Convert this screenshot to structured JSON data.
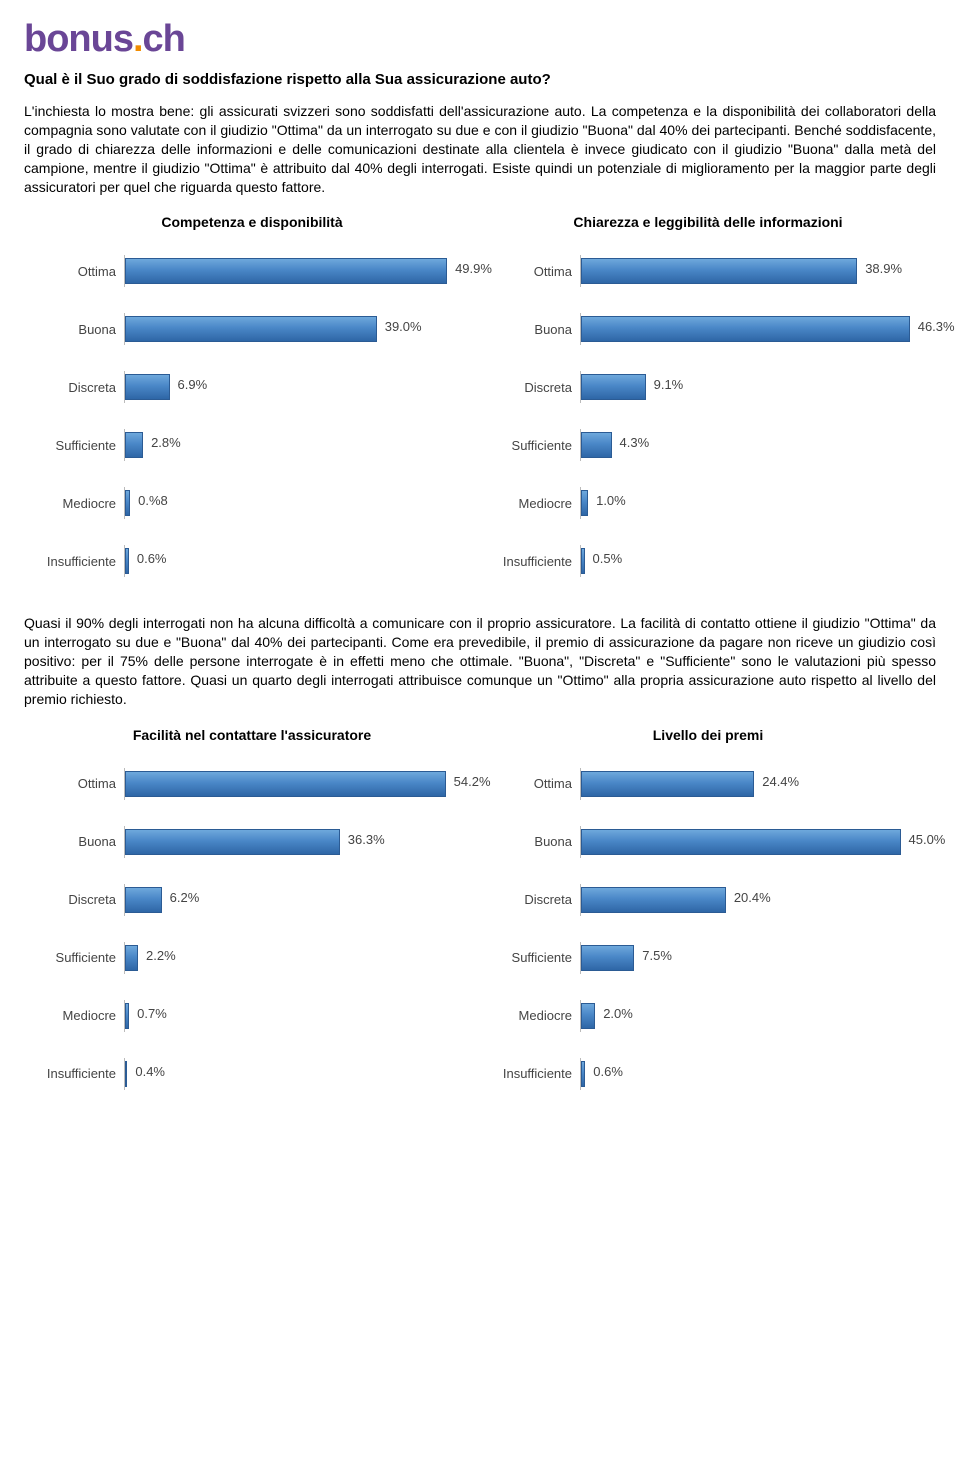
{
  "logo": {
    "text1": "bonus",
    "dot": ".",
    "text2": "ch"
  },
  "question": "Qual è il Suo grado di soddisfazione rispetto alla Sua assicurazione auto?",
  "para1": "L'inchiesta lo mostra bene: gli assicurati svizzeri sono soddisfatti dell'assicurazione auto. La competenza e la disponibilità dei collaboratori della compagnia sono valutate con il giudizio \"Ottima\" da un interrogato su due e con il giudizio \"Buona\" dal 40% dei partecipanti. Benché soddisfacente, il grado di chiarezza delle informazioni e delle comunicazioni destinate alla clientela è invece giudicato con il giudizio \"Buona\" dalla metà del campione, mentre il giudizio \"Ottima\" è attribuito dal 40% degli interrogati. Esiste quindi un potenziale di miglioramento per la maggior parte degli assicuratori per quel che riguarda questo fattore.",
  "para2": "Quasi il 90% degli interrogati non ha alcuna difficoltà a comunicare con il proprio assicuratore. La facilità di contatto ottiene il giudizio \"Ottima\" da un interrogato su due e \"Buona\" dal 40% dei partecipanti. Come era prevedibile, il premio di assicurazione da pagare non riceve un giudizio così positivo: per il 75% delle persone interrogate è in effetti meno che ottimale. \"Buona\", \"Discreta\" e \"Sufficiente\" sono le valutazioni più spesso attribuite a questo fattore. Quasi un quarto degli interrogati attribuisce comunque un \"Ottimo\" alla propria assicurazione auto rispetto al livello del premio richiesto.",
  "categories": [
    "Ottima",
    "Buona",
    "Discreta",
    "Sufficiente",
    "Mediocre",
    "Insufficiente"
  ],
  "colors": {
    "bar_top": "#6ea8dc",
    "bar_mid": "#4a87c7",
    "bar_bot": "#2e66a6",
    "bar_border": "#2b5b94",
    "axis": "#bbbbbb",
    "text": "#444444"
  },
  "charts": [
    {
      "id": "chart-competenza",
      "title": "Competenza e disponibilità",
      "max": 55,
      "rows": [
        {
          "label": "Ottima",
          "value": 49.9,
          "text": "49.9%"
        },
        {
          "label": "Buona",
          "value": 39.0,
          "text": "39.0%"
        },
        {
          "label": "Discreta",
          "value": 6.9,
          "text": "6.9%"
        },
        {
          "label": "Sufficiente",
          "value": 2.8,
          "text": "2.8%"
        },
        {
          "label": "Mediocre",
          "value": 0.8,
          "text": "0.%8"
        },
        {
          "label": "Insufficiente",
          "value": 0.6,
          "text": "0.6%"
        }
      ]
    },
    {
      "id": "chart-chiarezza",
      "title": "Chiarezza e leggibilità delle informazioni",
      "max": 50,
      "rows": [
        {
          "label": "Ottima",
          "value": 38.9,
          "text": "38.9%"
        },
        {
          "label": "Buona",
          "value": 46.3,
          "text": "46.3%"
        },
        {
          "label": "Discreta",
          "value": 9.1,
          "text": "9.1%"
        },
        {
          "label": "Sufficiente",
          "value": 4.3,
          "text": "4.3%"
        },
        {
          "label": "Mediocre",
          "value": 1.0,
          "text": "1.0%"
        },
        {
          "label": "Insufficiente",
          "value": 0.5,
          "text": "0.5%"
        }
      ]
    },
    {
      "id": "chart-facilita",
      "title": "Facilità nel contattare l'assicuratore",
      "max": 60,
      "rows": [
        {
          "label": "Ottima",
          "value": 54.2,
          "text": "54.2%"
        },
        {
          "label": "Buona",
          "value": 36.3,
          "text": "36.3%"
        },
        {
          "label": "Discreta",
          "value": 6.2,
          "text": "6.2%"
        },
        {
          "label": "Sufficiente",
          "value": 2.2,
          "text": "2.2%"
        },
        {
          "label": "Mediocre",
          "value": 0.7,
          "text": "0.7%"
        },
        {
          "label": "Insufficiente",
          "value": 0.4,
          "text": "0.4%"
        }
      ]
    },
    {
      "id": "chart-premi",
      "title": "Livello dei premi",
      "max": 50,
      "rows": [
        {
          "label": "Ottima",
          "value": 24.4,
          "text": "24.4%"
        },
        {
          "label": "Buona",
          "value": 45.0,
          "text": "45.0%"
        },
        {
          "label": "Discreta",
          "value": 20.4,
          "text": "20.4%"
        },
        {
          "label": "Sufficiente",
          "value": 7.5,
          "text": "7.5%"
        },
        {
          "label": "Mediocre",
          "value": 2.0,
          "text": "2.0%"
        },
        {
          "label": "Insufficiente",
          "value": 0.6,
          "text": "0.6%"
        }
      ]
    }
  ]
}
